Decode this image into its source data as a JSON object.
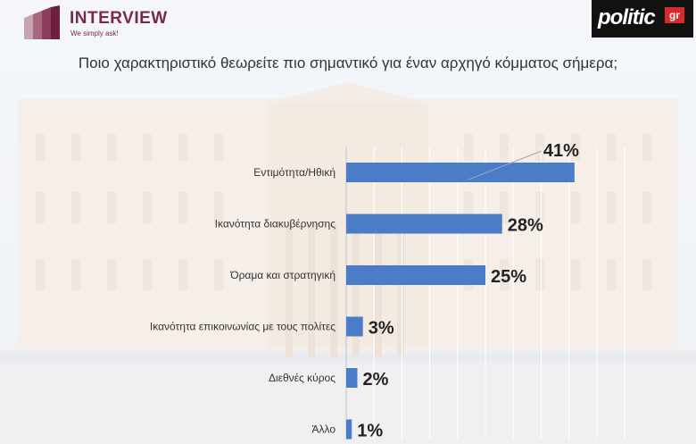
{
  "header": {
    "left_logo_name": "INTERVIEW",
    "left_logo_tagline": "We simply ask!",
    "right_logo_word": "politic",
    "right_logo_badge": "gr",
    "title": "Ποιο χαρακτηριστικό θεωρείτε πιο σημαντικό για έναν αρχηγό κόμματος σήμερα;"
  },
  "colors": {
    "bar": "#4a7cc7",
    "label": "#333333",
    "value": "#222222"
  },
  "chart_data": {
    "type": "bar",
    "orientation": "horizontal",
    "categories": [
      "Εντιμότητα/Ηθική",
      "Ικανότητα διακυβέρνησης",
      "Όραμα και στρατηγική",
      "Ικανότητα επικοινωνίας με τους πολίτες",
      "Διεθνές κύρος",
      "Άλλο"
    ],
    "values": [
      41,
      28,
      25,
      3,
      2,
      1
    ],
    "value_labels": [
      "41%",
      "28%",
      "25%",
      "3%",
      "2%",
      "1%"
    ],
    "xlim": [
      0,
      50
    ]
  }
}
